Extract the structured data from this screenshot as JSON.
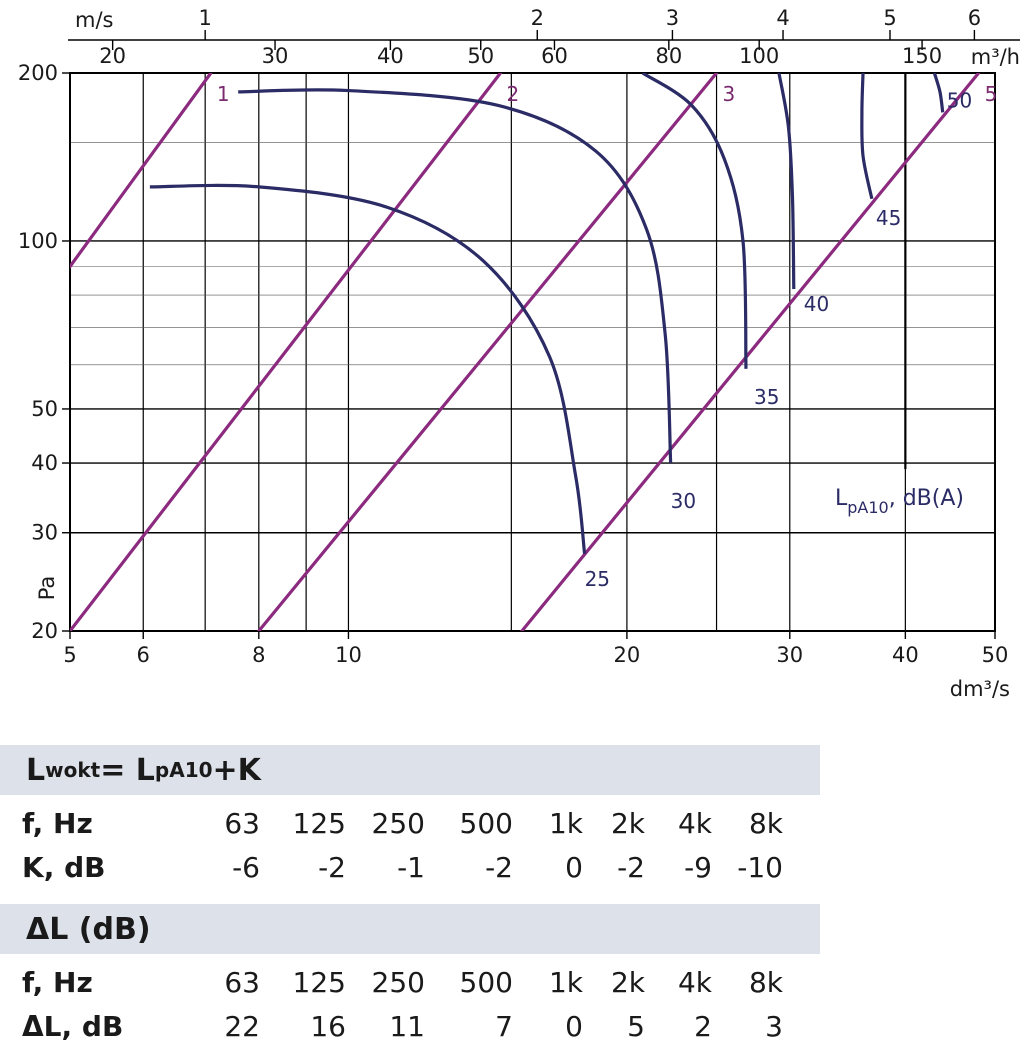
{
  "chart_data": {
    "type": "line",
    "x_axis": {
      "label": "dm³/s",
      "scale": "log",
      "range": [
        5,
        50
      ],
      "ticks": [
        5,
        6,
        8,
        10,
        20,
        30,
        40,
        50
      ]
    },
    "y_axis": {
      "label": "Pa",
      "scale": "log",
      "range": [
        20,
        200
      ],
      "ticks": [
        20,
        30,
        40,
        50,
        100,
        200
      ]
    },
    "top_axis_velocity": {
      "label": "m/s",
      "ticks": [
        {
          "label": "1",
          "x": 7.0
        },
        {
          "label": "2",
          "x": 16.0
        },
        {
          "label": "3",
          "x": 22.4
        },
        {
          "label": "4",
          "x": 29.5
        },
        {
          "label": "5",
          "x": 38.5
        },
        {
          "label": "6",
          "x": 47.5
        }
      ]
    },
    "top_axis_flow": {
      "label": "m³/h",
      "ticks": [
        {
          "label": "20",
          "x": 5.56
        },
        {
          "label": "30",
          "x": 8.33
        },
        {
          "label": "40",
          "x": 11.1
        },
        {
          "label": "50",
          "x": 13.9
        },
        {
          "label": "60",
          "x": 16.7
        },
        {
          "label": "80",
          "x": 22.2
        },
        {
          "label": "100",
          "x": 27.8
        },
        {
          "label": "150",
          "x": 41.7
        }
      ]
    },
    "diagonal_lines": [
      {
        "name": "1",
        "points": [
          [
            5.0,
            90
          ],
          [
            7.1,
            200
          ]
        ]
      },
      {
        "name": "2",
        "points": [
          [
            5.0,
            20
          ],
          [
            14.6,
            200
          ]
        ]
      },
      {
        "name": "3",
        "points": [
          [
            8.0,
            20
          ],
          [
            25.0,
            200
          ]
        ]
      },
      {
        "name": "5",
        "points": [
          [
            15.4,
            20
          ],
          [
            48.0,
            200
          ]
        ]
      }
    ],
    "sound_contours": [
      {
        "label": "25",
        "points": [
          [
            6.1,
            125
          ],
          [
            8.0,
            125
          ],
          [
            11.0,
            115
          ],
          [
            14.0,
            92
          ],
          [
            16.5,
            62
          ],
          [
            17.6,
            38
          ],
          [
            18.0,
            27.5
          ]
        ]
      },
      {
        "label": "30",
        "points": [
          [
            7.6,
            185
          ],
          [
            10.0,
            186
          ],
          [
            14.5,
            175
          ],
          [
            18.5,
            145
          ],
          [
            21.0,
            105
          ],
          [
            22.0,
            68
          ],
          [
            22.3,
            40
          ]
        ]
      },
      {
        "label": "35",
        "points": [
          [
            20.8,
            200
          ],
          [
            23.5,
            175
          ],
          [
            25.5,
            140
          ],
          [
            26.7,
            100
          ],
          [
            26.9,
            59
          ]
        ]
      },
      {
        "label": "40",
        "points": [
          [
            29.2,
            200
          ],
          [
            29.9,
            160
          ],
          [
            30.2,
            120
          ],
          [
            30.3,
            82
          ]
        ]
      },
      {
        "label": "45",
        "points": [
          [
            36.0,
            200
          ],
          [
            35.9,
            170
          ],
          [
            36.0,
            142
          ],
          [
            36.8,
            119
          ]
        ]
      },
      {
        "label": "50",
        "points": [
          [
            43.0,
            200
          ],
          [
            43.6,
            185
          ],
          [
            43.9,
            170
          ]
        ]
      }
    ],
    "annotation": "LpA10, dB(A)"
  },
  "annotation_parts": {
    "main": "L",
    "sub": "pA10",
    "rest": ", dB(A)"
  },
  "table_k": {
    "title": "Lwokt= LpA10+K",
    "title_parts": {
      "a": "L",
      "a_sub": "wokt",
      "b": "= L",
      "b_sub": "pA10",
      "c": "+K"
    },
    "freq_label": "f, Hz",
    "value_label": "K, dB",
    "freqs": [
      "63",
      "125",
      "250",
      "500",
      "1k",
      "2k",
      "4k",
      "8k"
    ],
    "values": [
      "-6",
      "-2",
      "-1",
      "-2",
      "0",
      "-2",
      "-9",
      "-10"
    ]
  },
  "table_dl": {
    "title": "ΔL (dB)",
    "freq_label": "f, Hz",
    "value_label": "ΔL, dB",
    "freqs": [
      "63",
      "125",
      "250",
      "500",
      "1k",
      "2k",
      "4k",
      "8k"
    ],
    "values": [
      "22",
      "16",
      "11",
      "7",
      "0",
      "5",
      "2",
      "3"
    ]
  },
  "colors": {
    "diagonal": "#8b2a7e",
    "contour": "#2b2b66",
    "grid": "#000000",
    "band": "#dde1ea"
  }
}
